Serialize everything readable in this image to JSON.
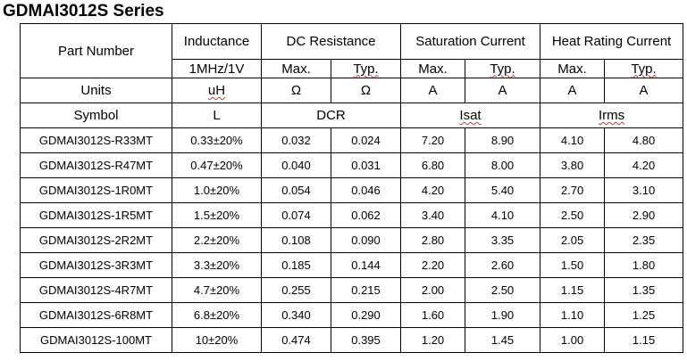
{
  "title": "GDMAI3012S Series",
  "headers": {
    "part_number": "Part Number",
    "inductance": "Inductance",
    "inductance_cond": "1MHz/1V",
    "dc_resistance": "DC Resistance",
    "saturation_current": "Saturation Current",
    "heat_rating_current": "Heat Rating Current",
    "max": "Max.",
    "typ": "Typ.",
    "units_label": "Units",
    "unit_inductance": "uH",
    "unit_ohm": "Ω",
    "unit_amp": "A",
    "symbol_label": "Symbol",
    "sym_inductance": "L",
    "sym_dcr": "DCR",
    "sym_isat": "Isat",
    "sym_irms": "Irms"
  },
  "rows": [
    {
      "part": "GDMAI3012S-R33MT",
      "l": "0.33±20%",
      "dcr_max": "0.032",
      "dcr_typ": "0.024",
      "isat_max": "7.20",
      "isat_typ": "8.90",
      "irms_max": "4.10",
      "irms_typ": "4.80"
    },
    {
      "part": "GDMAI3012S-R47MT",
      "l": "0.47±20%",
      "dcr_max": "0.040",
      "dcr_typ": "0.031",
      "isat_max": "6.80",
      "isat_typ": "8.00",
      "irms_max": "3.80",
      "irms_typ": "4.20"
    },
    {
      "part": "GDMAI3012S-1R0MT",
      "l": "1.0±20%",
      "dcr_max": "0.054",
      "dcr_typ": "0.046",
      "isat_max": "4.20",
      "isat_typ": "5.40",
      "irms_max": "2.70",
      "irms_typ": "3.10"
    },
    {
      "part": "GDMAI3012S-1R5MT",
      "l": "1.5±20%",
      "dcr_max": "0.074",
      "dcr_typ": "0.062",
      "isat_max": "3.40",
      "isat_typ": "4.10",
      "irms_max": "2.50",
      "irms_typ": "2.90"
    },
    {
      "part": "GDMAI3012S-2R2MT",
      "l": "2.2±20%",
      "dcr_max": "0.108",
      "dcr_typ": "0.090",
      "isat_max": "2.80",
      "isat_typ": "3.35",
      "irms_max": "2.05",
      "irms_typ": "2.35"
    },
    {
      "part": "GDMAI3012S-3R3MT",
      "l": "3.3±20%",
      "dcr_max": "0.185",
      "dcr_typ": "0.144",
      "isat_max": "2.20",
      "isat_typ": "2.60",
      "irms_max": "1.50",
      "irms_typ": "1.80"
    },
    {
      "part": "GDMAI3012S-4R7MT",
      "l": "4.7±20%",
      "dcr_max": "0.255",
      "dcr_typ": "0.215",
      "isat_max": "2.00",
      "isat_typ": "2.50",
      "irms_max": "1.15",
      "irms_typ": "1.35"
    },
    {
      "part": "GDMAI3012S-6R8MT",
      "l": "6.8±20%",
      "dcr_max": "0.340",
      "dcr_typ": "0.290",
      "isat_max": "1.60",
      "isat_typ": "1.90",
      "irms_max": "1.10",
      "irms_typ": "1.25"
    },
    {
      "part": "GDMAI3012S-100MT",
      "l": "10±20%",
      "dcr_max": "0.474",
      "dcr_typ": "0.395",
      "isat_max": "1.20",
      "isat_typ": "1.45",
      "irms_max": "1.00",
      "irms_typ": "1.15"
    }
  ]
}
